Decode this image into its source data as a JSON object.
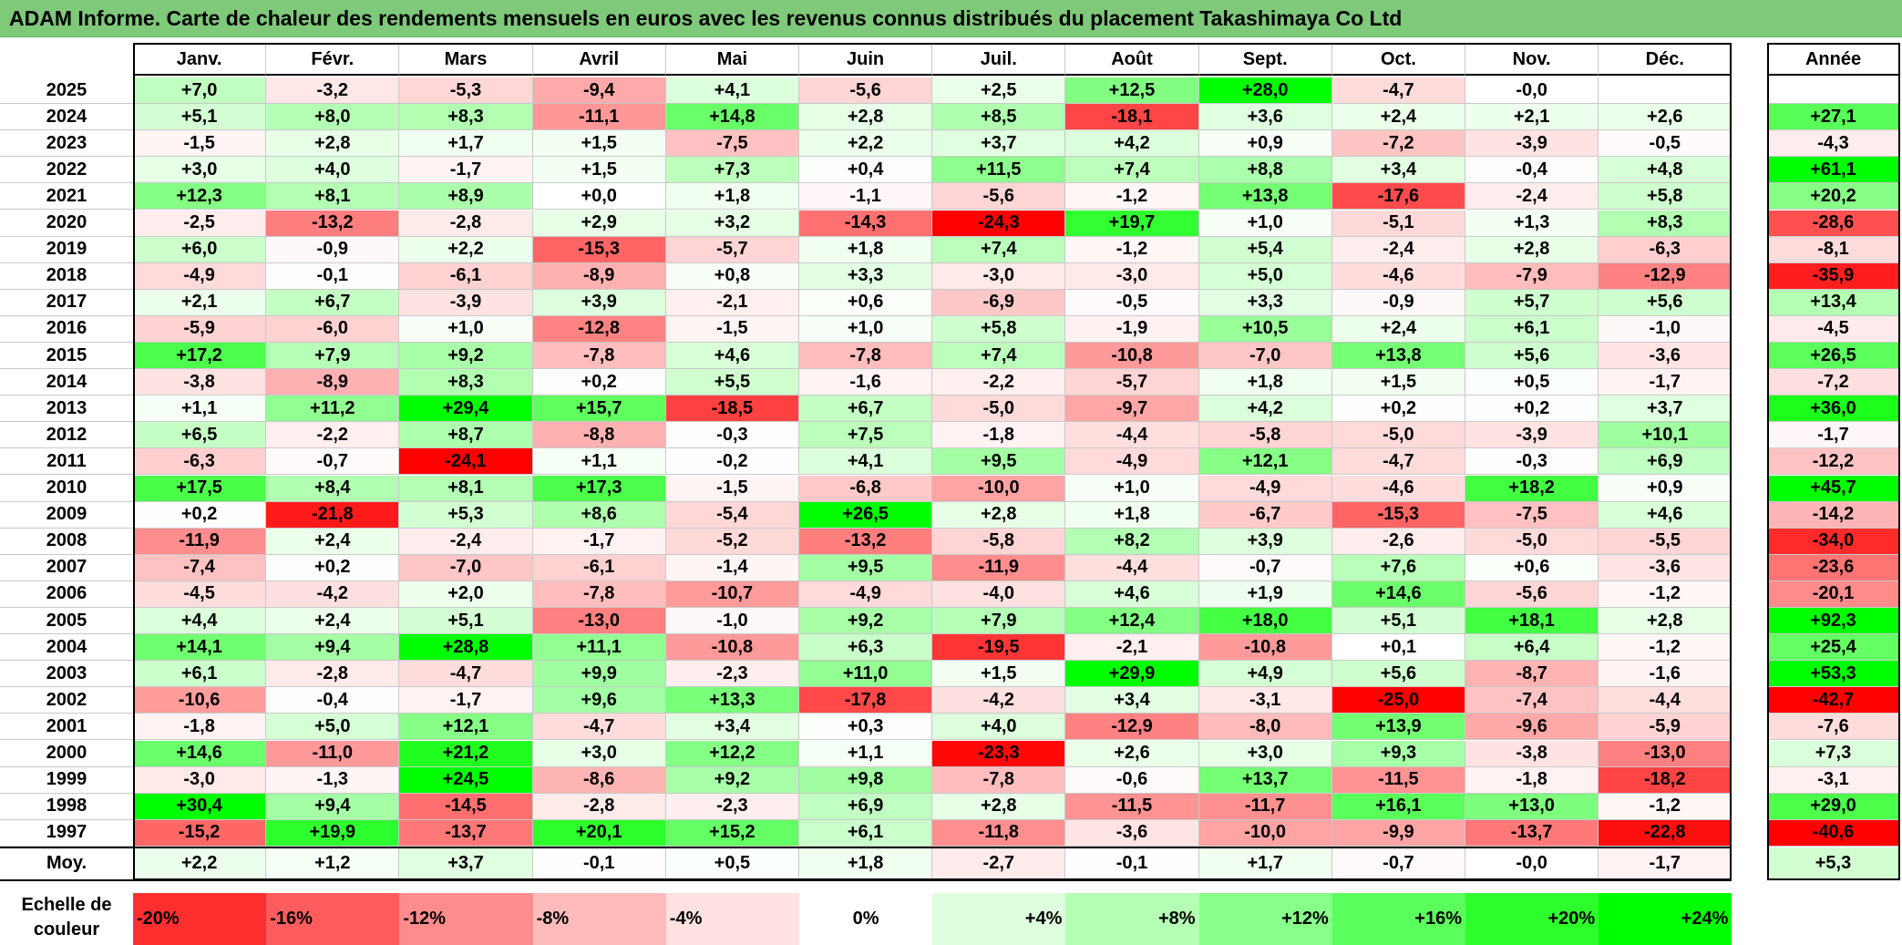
{
  "title": "ADAM Informe. Carte de chaleur des rendements mensuels en euros avec les revenus connus distribués du placement Takashimaya Co Ltd",
  "chart_data": {
    "type": "heatmap",
    "months": [
      "Janv.",
      "Févr.",
      "Mars",
      "Avril",
      "Mai",
      "Juin",
      "Juil.",
      "Août",
      "Sept.",
      "Oct.",
      "Nov.",
      "Déc."
    ],
    "annual_label": "Année",
    "rows": [
      {
        "year": "2025",
        "values": [
          "+7,0",
          "-3,2",
          "-5,3",
          "-9,4",
          "+4,1",
          "-5,6",
          "+2,5",
          "+12,5",
          "+28,0",
          "-4,7",
          "-0,0",
          ""
        ],
        "annual": ""
      },
      {
        "year": "2024",
        "values": [
          "+5,1",
          "+8,0",
          "+8,3",
          "-11,1",
          "+14,8",
          "+2,8",
          "+8,5",
          "-18,1",
          "+3,6",
          "+2,4",
          "+2,1",
          "+2,6"
        ],
        "annual": "+27,1"
      },
      {
        "year": "2023",
        "values": [
          "-1,5",
          "+2,8",
          "+1,7",
          "+1,5",
          "-7,5",
          "+2,2",
          "+3,7",
          "+4,2",
          "+0,9",
          "-7,2",
          "-3,9",
          "-0,5"
        ],
        "annual": "-4,3"
      },
      {
        "year": "2022",
        "values": [
          "+3,0",
          "+4,0",
          "-1,7",
          "+1,5",
          "+7,3",
          "+0,4",
          "+11,5",
          "+7,4",
          "+8,8",
          "+3,4",
          "-0,4",
          "+4,8"
        ],
        "annual": "+61,1"
      },
      {
        "year": "2021",
        "values": [
          "+12,3",
          "+8,1",
          "+8,9",
          "+0,0",
          "+1,8",
          "-1,1",
          "-5,6",
          "-1,2",
          "+13,8",
          "-17,6",
          "-2,4",
          "+5,8"
        ],
        "annual": "+20,2"
      },
      {
        "year": "2020",
        "values": [
          "-2,5",
          "-13,2",
          "-2,8",
          "+2,9",
          "+3,2",
          "-14,3",
          "-24,3",
          "+19,7",
          "+1,0",
          "-5,1",
          "+1,3",
          "+8,3"
        ],
        "annual": "-28,6"
      },
      {
        "year": "2019",
        "values": [
          "+6,0",
          "-0,9",
          "+2,2",
          "-15,3",
          "-5,7",
          "+1,8",
          "+7,4",
          "-1,2",
          "+5,4",
          "-2,4",
          "+2,8",
          "-6,3"
        ],
        "annual": "-8,1"
      },
      {
        "year": "2018",
        "values": [
          "-4,9",
          "-0,1",
          "-6,1",
          "-8,9",
          "+0,8",
          "+3,3",
          "-3,0",
          "-3,0",
          "+5,0",
          "-4,6",
          "-7,9",
          "-12,9"
        ],
        "annual": "-35,9"
      },
      {
        "year": "2017",
        "values": [
          "+2,1",
          "+6,7",
          "-3,9",
          "+3,9",
          "-2,1",
          "+0,6",
          "-6,9",
          "-0,5",
          "+3,3",
          "-0,9",
          "+5,7",
          "+5,6"
        ],
        "annual": "+13,4"
      },
      {
        "year": "2016",
        "values": [
          "-5,9",
          "-6,0",
          "+1,0",
          "-12,8",
          "-1,5",
          "+1,0",
          "+5,8",
          "-1,9",
          "+10,5",
          "+2,4",
          "+6,1",
          "-1,0"
        ],
        "annual": "-4,5"
      },
      {
        "year": "2015",
        "values": [
          "+17,2",
          "+7,9",
          "+9,2",
          "-7,8",
          "+4,6",
          "-7,8",
          "+7,4",
          "-10,8",
          "-7,0",
          "+13,8",
          "+5,6",
          "-3,6"
        ],
        "annual": "+26,5"
      },
      {
        "year": "2014",
        "values": [
          "-3,8",
          "-8,9",
          "+8,3",
          "+0,2",
          "+5,5",
          "-1,6",
          "-2,2",
          "-5,7",
          "+1,8",
          "+1,5",
          "+0,5",
          "-1,7"
        ],
        "annual": "-7,2"
      },
      {
        "year": "2013",
        "values": [
          "+1,1",
          "+11,2",
          "+29,4",
          "+15,7",
          "-18,5",
          "+6,7",
          "-5,0",
          "-9,7",
          "+4,2",
          "+0,2",
          "+0,2",
          "+3,7"
        ],
        "annual": "+36,0"
      },
      {
        "year": "2012",
        "values": [
          "+6,5",
          "-2,2",
          "+8,7",
          "-8,8",
          "-0,3",
          "+7,5",
          "-1,8",
          "-4,4",
          "-5,8",
          "-5,0",
          "-3,9",
          "+10,1"
        ],
        "annual": "-1,7"
      },
      {
        "year": "2011",
        "values": [
          "-6,3",
          "-0,7",
          "-24,1",
          "+1,1",
          "-0,2",
          "+4,1",
          "+9,5",
          "-4,9",
          "+12,1",
          "-4,7",
          "-0,3",
          "+6,9"
        ],
        "annual": "-12,2"
      },
      {
        "year": "2010",
        "values": [
          "+17,5",
          "+8,4",
          "+8,1",
          "+17,3",
          "-1,5",
          "-6,8",
          "-10,0",
          "+1,0",
          "-4,9",
          "-4,6",
          "+18,2",
          "+0,9"
        ],
        "annual": "+45,7"
      },
      {
        "year": "2009",
        "values": [
          "+0,2",
          "-21,8",
          "+5,3",
          "+8,6",
          "-5,4",
          "+26,5",
          "+2,8",
          "+1,8",
          "-6,7",
          "-15,3",
          "-7,5",
          "+4,6"
        ],
        "annual": "-14,2"
      },
      {
        "year": "2008",
        "values": [
          "-11,9",
          "+2,4",
          "-2,4",
          "-1,7",
          "-5,2",
          "-13,2",
          "-5,8",
          "+8,2",
          "+3,9",
          "-2,6",
          "-5,0",
          "-5,5"
        ],
        "annual": "-34,0"
      },
      {
        "year": "2007",
        "values": [
          "-7,4",
          "+0,2",
          "-7,0",
          "-6,1",
          "-1,4",
          "+9,5",
          "-11,9",
          "-4,4",
          "-0,7",
          "+7,6",
          "+0,6",
          "-3,6"
        ],
        "annual": "-23,6"
      },
      {
        "year": "2006",
        "values": [
          "-4,5",
          "-4,2",
          "+2,0",
          "-7,8",
          "-10,7",
          "-4,9",
          "-4,0",
          "+4,6",
          "+1,9",
          "+14,6",
          "-5,6",
          "-1,2"
        ],
        "annual": "-20,1"
      },
      {
        "year": "2005",
        "values": [
          "+4,4",
          "+2,4",
          "+5,1",
          "-13,0",
          "-1,0",
          "+9,2",
          "+7,9",
          "+12,4",
          "+18,0",
          "+5,1",
          "+18,1",
          "+2,8"
        ],
        "annual": "+92,3"
      },
      {
        "year": "2004",
        "values": [
          "+14,1",
          "+9,4",
          "+28,8",
          "+11,1",
          "-10,8",
          "+6,3",
          "-19,5",
          "-2,1",
          "-10,8",
          "+0,1",
          "+6,4",
          "-1,2"
        ],
        "annual": "+25,4"
      },
      {
        "year": "2003",
        "values": [
          "+6,1",
          "-2,8",
          "-4,7",
          "+9,9",
          "-2,3",
          "+11,0",
          "+1,5",
          "+29,9",
          "+4,9",
          "+5,6",
          "-8,7",
          "-1,6"
        ],
        "annual": "+53,3"
      },
      {
        "year": "2002",
        "values": [
          "-10,6",
          "-0,4",
          "-1,7",
          "+9,6",
          "+13,3",
          "-17,8",
          "-4,2",
          "+3,4",
          "-3,1",
          "-25,0",
          "-7,4",
          "-4,4"
        ],
        "annual": "-42,7"
      },
      {
        "year": "2001",
        "values": [
          "-1,8",
          "+5,0",
          "+12,1",
          "-4,7",
          "+3,4",
          "+0,3",
          "+4,0",
          "-12,9",
          "-8,0",
          "+13,9",
          "-9,6",
          "-5,9"
        ],
        "annual": "-7,6"
      },
      {
        "year": "2000",
        "values": [
          "+14,6",
          "-11,0",
          "+21,2",
          "+3,0",
          "+12,2",
          "+1,1",
          "-23,3",
          "+2,6",
          "+3,0",
          "+9,3",
          "-3,8",
          "-13,0"
        ],
        "annual": "+7,3"
      },
      {
        "year": "1999",
        "values": [
          "-3,0",
          "-1,3",
          "+24,5",
          "-8,6",
          "+9,2",
          "+9,8",
          "-7,8",
          "-0,6",
          "+13,7",
          "-11,5",
          "-1,8",
          "-18,2"
        ],
        "annual": "-3,1"
      },
      {
        "year": "1998",
        "values": [
          "+30,4",
          "+9,4",
          "-14,5",
          "-2,8",
          "-2,3",
          "+6,9",
          "+2,8",
          "-11,5",
          "-11,7",
          "+16,1",
          "+13,0",
          "-1,2"
        ],
        "annual": "+29,0"
      },
      {
        "year": "1997",
        "values": [
          "-15,2",
          "+19,9",
          "-13,7",
          "+20,1",
          "+15,2",
          "+6,1",
          "-11,8",
          "-3,6",
          "-10,0",
          "-9,9",
          "-13,7",
          "-22,8"
        ],
        "annual": "-40,6"
      }
    ],
    "average": {
      "label": "Moy.",
      "values": [
        "+2,2",
        "+1,2",
        "+3,7",
        "-0,1",
        "+0,5",
        "+1,8",
        "-2,7",
        "-0,1",
        "+1,7",
        "-0,7",
        "-0,0",
        "-1,7"
      ],
      "annual": "+5,3"
    },
    "scale": {
      "label_line1": "Echelle de",
      "label_line2": "couleur",
      "stops": [
        "-20%",
        "-16%",
        "-12%",
        "-8%",
        "-4%",
        "0%",
        "+4%",
        "+8%",
        "+12%",
        "+16%",
        "+20%",
        "+24%"
      ]
    },
    "colors": {
      "negative_max": "#ff0000",
      "neutral": "#ffffff",
      "positive_max": "#00ff00",
      "title_bg": "#7ec97a"
    }
  }
}
